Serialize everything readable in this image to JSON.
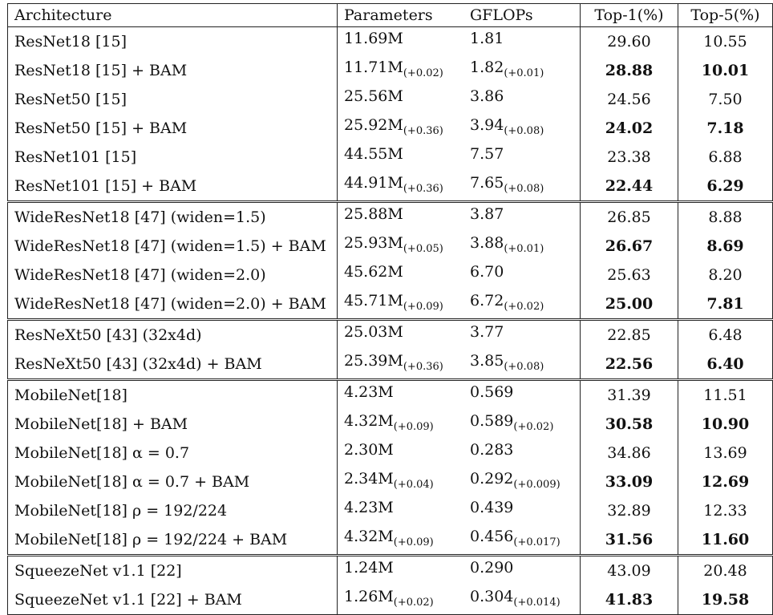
{
  "headers": [
    "Architecture",
    "Parameters",
    "GFLOPs",
    "Top-1(%)",
    "Top-5(%)"
  ],
  "groups": [
    [
      {
        "arch": "ResNet18 [15]",
        "params": "11.69M",
        "params_delta": "",
        "gflops": "1.81",
        "gflops_delta": "",
        "top1": "29.60",
        "top5": "10.55",
        "bold": false
      },
      {
        "arch": "ResNet18 [15] + BAM",
        "params": "11.71M",
        "params_delta": "(+0.02)",
        "gflops": "1.82",
        "gflops_delta": "(+0.01)",
        "top1": "28.88",
        "top5": "10.01",
        "bold": true
      },
      {
        "arch": "ResNet50 [15]",
        "params": "25.56M",
        "params_delta": "",
        "gflops": "3.86",
        "gflops_delta": "",
        "top1": "24.56",
        "top5": "7.50",
        "bold": false
      },
      {
        "arch": "ResNet50 [15] + BAM",
        "params": "25.92M",
        "params_delta": "(+0.36)",
        "gflops": "3.94",
        "gflops_delta": "(+0.08)",
        "top1": "24.02",
        "top5": "7.18",
        "bold": true
      },
      {
        "arch": "ResNet101 [15]",
        "params": "44.55M",
        "params_delta": "",
        "gflops": "7.57",
        "gflops_delta": "",
        "top1": "23.38",
        "top5": "6.88",
        "bold": false
      },
      {
        "arch": "ResNet101 [15] + BAM",
        "params": "44.91M",
        "params_delta": "(+0.36)",
        "gflops": "7.65",
        "gflops_delta": "(+0.08)",
        "top1": "22.44",
        "top5": "6.29",
        "bold": true
      }
    ],
    [
      {
        "arch": "WideResNet18 [47] (widen=1.5)",
        "params": "25.88M",
        "params_delta": "",
        "gflops": "3.87",
        "gflops_delta": "",
        "top1": "26.85",
        "top5": "8.88",
        "bold": false
      },
      {
        "arch": "WideResNet18 [47] (widen=1.5) + BAM",
        "params": "25.93M",
        "params_delta": "(+0.05)",
        "gflops": "3.88",
        "gflops_delta": "(+0.01)",
        "top1": "26.67",
        "top5": "8.69",
        "bold": true
      },
      {
        "arch": "WideResNet18 [47] (widen=2.0)",
        "params": "45.62M",
        "params_delta": "",
        "gflops": "6.70",
        "gflops_delta": "",
        "top1": "25.63",
        "top5": "8.20",
        "bold": false
      },
      {
        "arch": "WideResNet18 [47] (widen=2.0) + BAM",
        "params": "45.71M",
        "params_delta": "(+0.09)",
        "gflops": "6.72",
        "gflops_delta": "(+0.02)",
        "top1": "25.00",
        "top5": "7.81",
        "bold": true
      }
    ],
    [
      {
        "arch": "ResNeXt50 [43] (32x4d)",
        "params": "25.03M",
        "params_delta": "",
        "gflops": "3.77",
        "gflops_delta": "",
        "top1": "22.85",
        "top5": "6.48",
        "bold": false
      },
      {
        "arch": "ResNeXt50 [43] (32x4d) + BAM",
        "params": "25.39M",
        "params_delta": "(+0.36)",
        "gflops": "3.85",
        "gflops_delta": "(+0.08)",
        "top1": "22.56",
        "top5": "6.40",
        "bold": true
      }
    ],
    [
      {
        "arch": "MobileNet[18]",
        "params": "4.23M",
        "params_delta": "",
        "gflops": "0.569",
        "gflops_delta": "",
        "top1": "31.39",
        "top5": "11.51",
        "bold": false
      },
      {
        "arch": "MobileNet[18] + BAM",
        "params": "4.32M",
        "params_delta": "(+0.09)",
        "gflops": "0.589",
        "gflops_delta": "(+0.02)",
        "top1": "30.58",
        "top5": "10.90",
        "bold": true
      },
      {
        "arch": "MobileNet[18] α = 0.7",
        "params": "2.30M",
        "params_delta": "",
        "gflops": "0.283",
        "gflops_delta": "",
        "top1": "34.86",
        "top5": "13.69",
        "bold": false
      },
      {
        "arch": "MobileNet[18] α = 0.7 + BAM",
        "params": "2.34M",
        "params_delta": "(+0.04)",
        "gflops": "0.292",
        "gflops_delta": "(+0.009)",
        "top1": "33.09",
        "top5": "12.69",
        "bold": true
      },
      {
        "arch": "MobileNet[18] ρ = 192/224",
        "params": "4.23M",
        "params_delta": "",
        "gflops": "0.439",
        "gflops_delta": "",
        "top1": "32.89",
        "top5": "12.33",
        "bold": false
      },
      {
        "arch": "MobileNet[18] ρ = 192/224 + BAM",
        "params": "4.32M",
        "params_delta": "(+0.09)",
        "gflops": "0.456",
        "gflops_delta": "(+0.017)",
        "top1": "31.56",
        "top5": "11.60",
        "bold": true
      }
    ],
    [
      {
        "arch": "SqueezeNet v1.1 [22]",
        "params": "1.24M",
        "params_delta": "",
        "gflops": "0.290",
        "gflops_delta": "",
        "top1": "43.09",
        "top5": "20.48",
        "bold": false
      },
      {
        "arch": "SqueezeNet v1.1 [22] + BAM",
        "params": "1.26M",
        "params_delta": "(+0.02)",
        "gflops": "0.304",
        "gflops_delta": "(+0.014)",
        "top1": "41.83",
        "top5": "19.58",
        "bold": true
      }
    ]
  ]
}
